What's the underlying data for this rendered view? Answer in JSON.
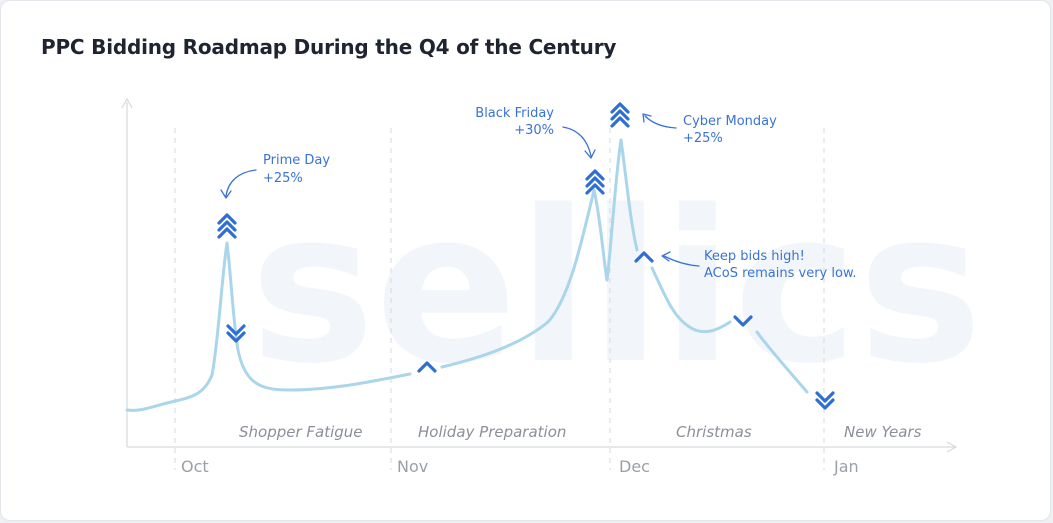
{
  "title": "PPC Bidding Roadmap During the Q4 of the Century",
  "watermark": "sellics",
  "colors": {
    "line": "#a9d6ea",
    "accent": "#2f6fd3",
    "annotation": "#3a73d6",
    "grid": "#d6d9de"
  },
  "chart_data": {
    "type": "line",
    "title": "PPC Bidding Roadmap During the Q4 of the Century",
    "xlabel": "",
    "ylabel": "",
    "grid": false,
    "x_ticks": [
      "Oct",
      "Nov",
      "Dec",
      "Jan"
    ],
    "phases": [
      "Shopper Fatigue",
      "Holiday Preparation",
      "Christmas",
      "New Years"
    ],
    "annotations": [
      {
        "lines": [
          "Prime Day",
          "+25%"
        ]
      },
      {
        "lines": [
          "Black Friday",
          "+30%"
        ]
      },
      {
        "lines": [
          "Cyber Monday",
          "+25%"
        ]
      },
      {
        "lines": [
          "Keep bids high!",
          "ACoS remains very low."
        ]
      }
    ],
    "markers": [
      {
        "label": "triple-up",
        "icon": "triple-chevron-up-icon"
      },
      {
        "label": "double-down",
        "icon": "double-chevron-down-icon"
      },
      {
        "label": "up",
        "icon": "chevron-up-icon"
      },
      {
        "label": "triple-up",
        "icon": "triple-chevron-up-icon"
      },
      {
        "label": "triple-up",
        "icon": "triple-chevron-up-icon"
      },
      {
        "label": "up",
        "icon": "chevron-up-icon"
      },
      {
        "label": "down",
        "icon": "chevron-down-icon"
      },
      {
        "label": "double-down",
        "icon": "double-chevron-down-icon"
      }
    ]
  }
}
